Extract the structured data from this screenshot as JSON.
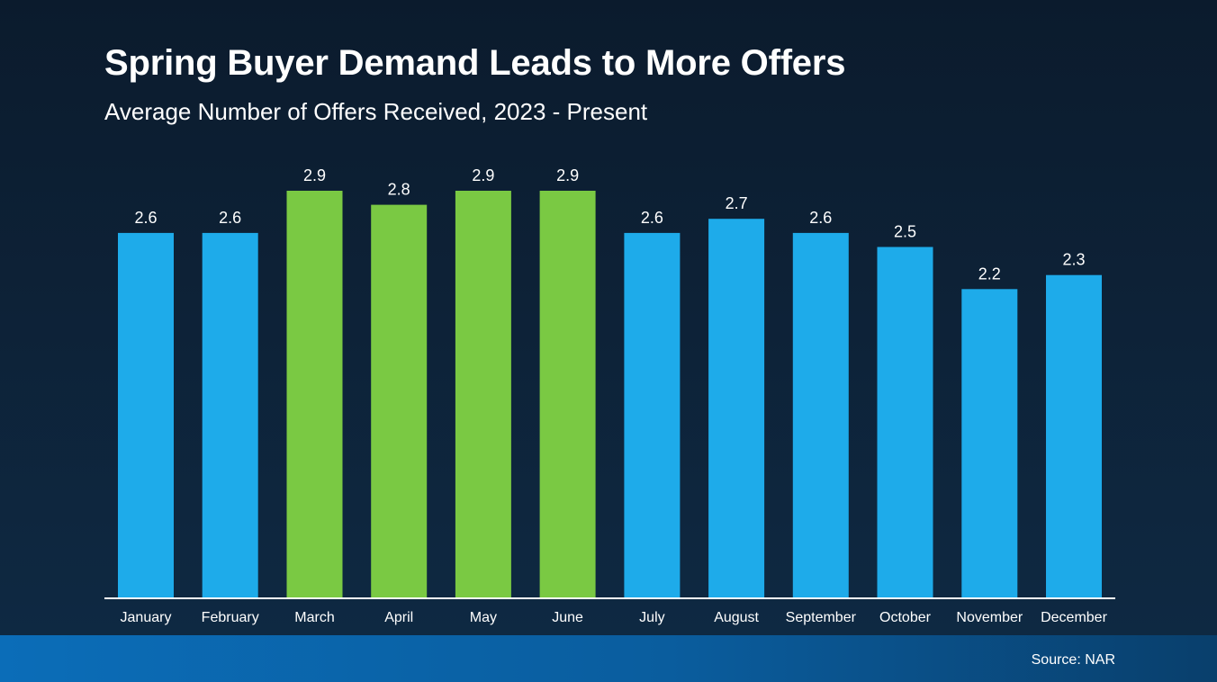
{
  "header": {
    "title": "Spring Buyer Demand Leads to More Offers",
    "subtitle": "Average Number of Offers Received, 2023 - Present"
  },
  "footer": {
    "source": "Source: NAR"
  },
  "colors": {
    "bar_default": "#1eabea",
    "bar_highlight": "#7ac943",
    "axis_line": "#ffffff",
    "text": "#ffffff"
  },
  "chart_data": {
    "type": "bar",
    "title": "Spring Buyer Demand Leads to More Offers",
    "subtitle": "Average Number of Offers Received, 2023 - Present",
    "xlabel": "",
    "ylabel": "",
    "categories": [
      "January",
      "February",
      "March",
      "April",
      "May",
      "June",
      "July",
      "August",
      "September",
      "October",
      "November",
      "December"
    ],
    "values": [
      2.6,
      2.6,
      2.9,
      2.8,
      2.9,
      2.9,
      2.6,
      2.7,
      2.6,
      2.5,
      2.2,
      2.3
    ],
    "value_labels": [
      "2.6",
      "2.6",
      "2.9",
      "2.8",
      "2.9",
      "2.9",
      "2.6",
      "2.7",
      "2.6",
      "2.5",
      "2.2",
      "2.3"
    ],
    "highlighted": [
      "March",
      "April",
      "May",
      "June"
    ],
    "ylim": [
      0,
      2.9
    ],
    "grid": false,
    "legend": "none"
  }
}
